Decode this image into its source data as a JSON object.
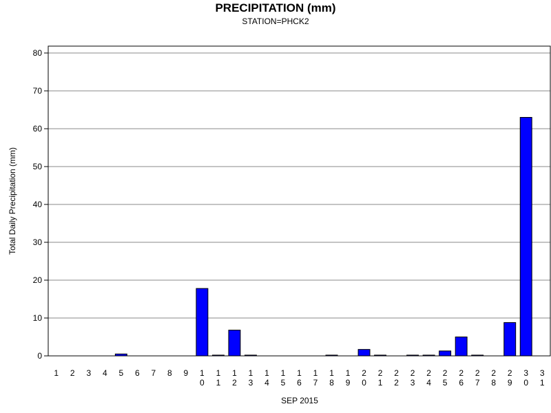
{
  "chart_data": {
    "type": "bar",
    "title": "PRECIPITATION (mm)",
    "subtitle": "STATION=PHCK2",
    "x_label": "SEP 2015",
    "y_label": "Total Daily Precipitation (mm)",
    "categories": [
      "1",
      "2",
      "3",
      "4",
      "5",
      "6",
      "7",
      "8",
      "9",
      "10",
      "11",
      "12",
      "13",
      "14",
      "15",
      "16",
      "17",
      "18",
      "19",
      "20",
      "21",
      "22",
      "23",
      "24",
      "25",
      "26",
      "27",
      "28",
      "29",
      "30",
      "31"
    ],
    "values": [
      0,
      0,
      0,
      0,
      0.5,
      0,
      0,
      0,
      0,
      17.8,
      0.2,
      6.8,
      0.2,
      0,
      0,
      0,
      0,
      0.2,
      0,
      1.7,
      0.2,
      0,
      0.2,
      0.2,
      1.3,
      5.0,
      0.2,
      0,
      8.8,
      63.0,
      0
    ],
    "color": "#0000ff",
    "ylim": [
      0,
      80
    ],
    "yticks": [
      0,
      10,
      20,
      30,
      40,
      50,
      60,
      70,
      80
    ],
    "grid": true
  }
}
